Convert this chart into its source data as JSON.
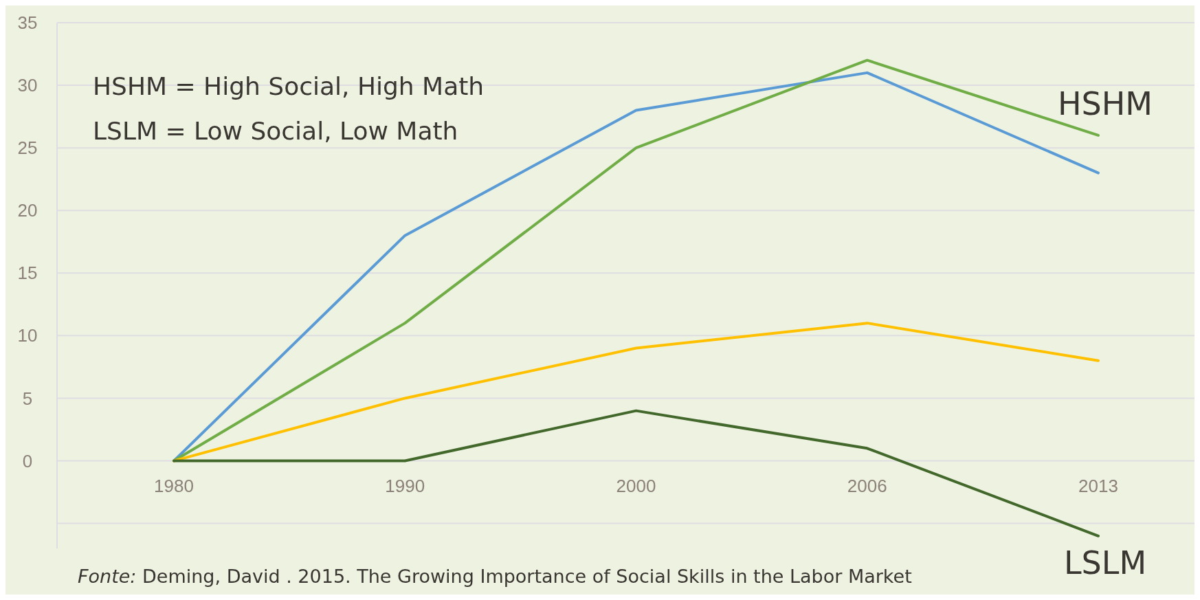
{
  "chart_data": {
    "type": "line",
    "categories": [
      "1980",
      "1990",
      "2000",
      "2006",
      "2013"
    ],
    "series": [
      {
        "color": "#5b9bd5",
        "values": [
          0,
          18,
          28,
          31,
          23
        ]
      },
      {
        "name": "HSHM",
        "color": "#70ad47",
        "values": [
          0,
          11,
          25,
          32,
          26
        ]
      },
      {
        "color": "#ffc000",
        "values": [
          0,
          5,
          9,
          11,
          8
        ]
      },
      {
        "name": "LSLM",
        "color": "#43682b",
        "values": [
          0,
          0,
          4,
          1,
          -6
        ]
      }
    ],
    "ylim": [
      -7,
      35
    ],
    "yticks": [
      {
        "value": -5,
        "label": null
      },
      0,
      5,
      10,
      15,
      20,
      25,
      30,
      35
    ],
    "grid": "y",
    "marker": "none",
    "line_style": "solid",
    "annotations": [
      "HSHM = High Social, High Math",
      "LSLM = Low Social, Low Math",
      "Fonte: Deming, David . 2015. The Growing Importance of Social Skills in the Labor Market"
    ]
  }
}
